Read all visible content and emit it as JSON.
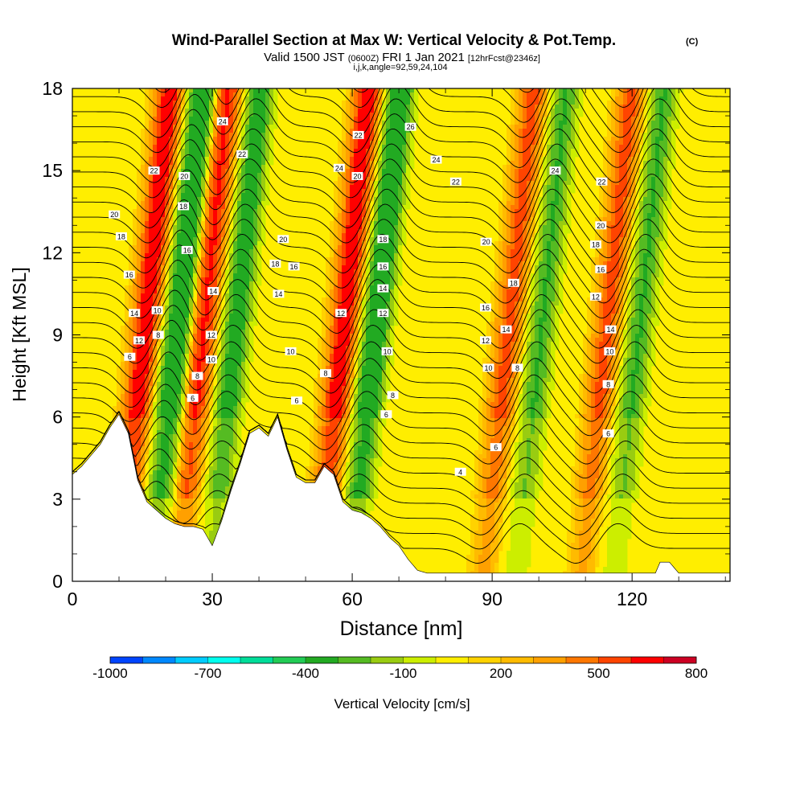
{
  "chart_data": {
    "type": "heatmap",
    "title": "Wind-Parallel Section at Max W: Vertical Velocity & Pot.Temp.",
    "title_mark": "(C)",
    "subtitle_main": "Valid 1500 JST",
    "subtitle_zulu": "(0600Z)",
    "subtitle_date": "FRI 1 Jan 2021",
    "subtitle_fcst": "[12hrFcst@2346z]",
    "subtitle_indices": "i,j,k,angle=92,59,24,104",
    "xlabel": "Distance [nm]",
    "ylabel": "Height [Kft MSL]",
    "xlim": [
      0,
      141
    ],
    "ylim": [
      0,
      18
    ],
    "x_ticks": [
      0,
      30,
      60,
      90,
      120
    ],
    "y_ticks": [
      0,
      3,
      6,
      9,
      12,
      15,
      18
    ],
    "colorbar": {
      "label": "Vertical Velocity [cm/s]",
      "tick_labels": [
        "-1000",
        "-700",
        "-400",
        "-100",
        "200",
        "500",
        "800"
      ],
      "colors": [
        "#0000ff",
        "#0044ff",
        "#0088ff",
        "#00ccff",
        "#00ffee",
        "#00dd99",
        "#22cc55",
        "#22aa22",
        "#55bb22",
        "#99cc11",
        "#ccee00",
        "#ffee00",
        "#ffd200",
        "#ffbb00",
        "#ffa000",
        "#ff7700",
        "#ff4400",
        "#ff0000",
        "#cc0022",
        "#990044",
        "#770066",
        "#550088"
      ]
    },
    "wave_crests_nm": [
      17,
      29.5,
      59.5,
      95,
      116
    ],
    "terrain": {
      "x": [
        0,
        2,
        4,
        6,
        8,
        10,
        12,
        14,
        16,
        18,
        20,
        22,
        24,
        26,
        28,
        30,
        32,
        34,
        36,
        38,
        40,
        42,
        44,
        46,
        48,
        50,
        52,
        54,
        56,
        58,
        60,
        62,
        64,
        66,
        68,
        70,
        72,
        74,
        76,
        78,
        80,
        84,
        90,
        100,
        110,
        120,
        125,
        126,
        128,
        130,
        135,
        141
      ],
      "height": [
        3.9,
        4.2,
        4.6,
        5.0,
        5.6,
        6.1,
        5.4,
        3.7,
        2.9,
        2.6,
        2.3,
        2.1,
        2.0,
        2.0,
        1.9,
        1.3,
        2.2,
        3.3,
        4.3,
        5.4,
        5.6,
        5.3,
        6.0,
        4.8,
        3.8,
        3.6,
        3.6,
        4.2,
        3.9,
        2.9,
        2.6,
        2.5,
        2.3,
        2.0,
        1.6,
        1.3,
        0.8,
        0.4,
        0.3,
        0.3,
        0.3,
        0.3,
        0.3,
        0.3,
        0.3,
        0.3,
        0.3,
        0.7,
        0.7,
        0.3,
        0.3,
        0.3
      ]
    },
    "contour_labels": [
      {
        "x": 9,
        "y": 13.4,
        "text": "20"
      },
      {
        "x": 10.5,
        "y": 12.6,
        "text": "18"
      },
      {
        "x": 12.2,
        "y": 11.2,
        "text": "16"
      },
      {
        "x": 13.3,
        "y": 9.8,
        "text": "14"
      },
      {
        "x": 14.3,
        "y": 8.8,
        "text": "12"
      },
      {
        "x": 12.3,
        "y": 8.2,
        "text": "6"
      },
      {
        "x": 18.2,
        "y": 9.9,
        "text": "10"
      },
      {
        "x": 18.4,
        "y": 9.0,
        "text": "8"
      },
      {
        "x": 17.5,
        "y": 15.0,
        "text": "22"
      },
      {
        "x": 24,
        "y": 14.8,
        "text": "20"
      },
      {
        "x": 23.8,
        "y": 13.7,
        "text": "18"
      },
      {
        "x": 24.6,
        "y": 12.1,
        "text": "16"
      },
      {
        "x": 30.2,
        "y": 10.6,
        "text": "14"
      },
      {
        "x": 29.8,
        "y": 9.0,
        "text": "12"
      },
      {
        "x": 29.8,
        "y": 8.1,
        "text": "10"
      },
      {
        "x": 26.8,
        "y": 7.5,
        "text": "8"
      },
      {
        "x": 25.8,
        "y": 6.7,
        "text": "6"
      },
      {
        "x": 32.2,
        "y": 16.8,
        "text": "24"
      },
      {
        "x": 36.4,
        "y": 15.6,
        "text": "22"
      },
      {
        "x": 45.2,
        "y": 12.5,
        "text": "20"
      },
      {
        "x": 43.5,
        "y": 11.6,
        "text": "18"
      },
      {
        "x": 47.5,
        "y": 11.5,
        "text": "16"
      },
      {
        "x": 44.2,
        "y": 10.5,
        "text": "14"
      },
      {
        "x": 46.8,
        "y": 8.4,
        "text": "10"
      },
      {
        "x": 54.3,
        "y": 7.6,
        "text": "8"
      },
      {
        "x": 48.1,
        "y": 6.6,
        "text": "6"
      },
      {
        "x": 57.2,
        "y": 15.1,
        "text": "24"
      },
      {
        "x": 61.3,
        "y": 16.3,
        "text": "22"
      },
      {
        "x": 61.1,
        "y": 14.8,
        "text": "20"
      },
      {
        "x": 66.6,
        "y": 12.5,
        "text": "18"
      },
      {
        "x": 66.6,
        "y": 11.5,
        "text": "16"
      },
      {
        "x": 66.6,
        "y": 10.7,
        "text": "14"
      },
      {
        "x": 66.6,
        "y": 9.8,
        "text": "12"
      },
      {
        "x": 57.6,
        "y": 9.8,
        "text": "12"
      },
      {
        "x": 67.5,
        "y": 8.4,
        "text": "10"
      },
      {
        "x": 68.7,
        "y": 6.8,
        "text": "8"
      },
      {
        "x": 67.3,
        "y": 6.1,
        "text": "6"
      },
      {
        "x": 72.5,
        "y": 16.6,
        "text": "26"
      },
      {
        "x": 78.0,
        "y": 15.4,
        "text": "24"
      },
      {
        "x": 82.2,
        "y": 14.6,
        "text": "22"
      },
      {
        "x": 88.7,
        "y": 12.4,
        "text": "20"
      },
      {
        "x": 94.6,
        "y": 10.9,
        "text": "18"
      },
      {
        "x": 88.6,
        "y": 10.0,
        "text": "16"
      },
      {
        "x": 93.0,
        "y": 9.2,
        "text": "14"
      },
      {
        "x": 88.6,
        "y": 8.8,
        "text": "12"
      },
      {
        "x": 89.2,
        "y": 7.8,
        "text": "10"
      },
      {
        "x": 95.4,
        "y": 7.8,
        "text": "8"
      },
      {
        "x": 90.8,
        "y": 4.9,
        "text": "6"
      },
      {
        "x": 83.2,
        "y": 4.0,
        "text": "4"
      },
      {
        "x": 103.5,
        "y": 15.0,
        "text": "24"
      },
      {
        "x": 113.5,
        "y": 14.6,
        "text": "22"
      },
      {
        "x": 113.3,
        "y": 13.0,
        "text": "20"
      },
      {
        "x": 112.2,
        "y": 12.3,
        "text": "18"
      },
      {
        "x": 113.3,
        "y": 11.4,
        "text": "16"
      },
      {
        "x": 112.2,
        "y": 10.4,
        "text": "12"
      },
      {
        "x": 115.4,
        "y": 9.2,
        "text": "14"
      },
      {
        "x": 115.2,
        "y": 8.4,
        "text": "10"
      },
      {
        "x": 114.9,
        "y": 7.2,
        "text": "8"
      },
      {
        "x": 114.9,
        "y": 5.4,
        "text": "6"
      }
    ]
  }
}
